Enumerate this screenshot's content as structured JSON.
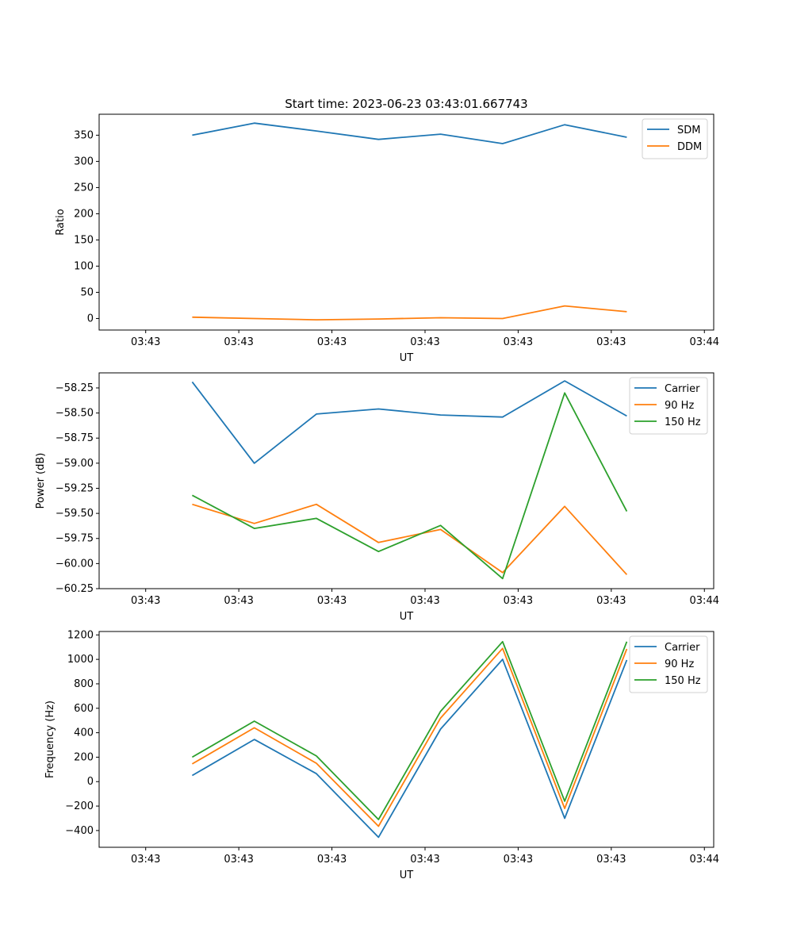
{
  "figure_title": "Start time: 2023-06-23 03:43:01.667743",
  "colors": {
    "blue": "#1f77b4",
    "orange": "#ff7f0e",
    "green": "#2ca02c"
  },
  "chart_data": [
    {
      "type": "line",
      "title": "Start time: 2023-06-23 03:43:01.667743",
      "xlabel": "UT",
      "ylabel": "Ratio",
      "x_tick_labels": [
        "03:43",
        "03:43",
        "03:43",
        "03:43",
        "03:43",
        "03:43",
        "03:44"
      ],
      "y_ticks": [
        0,
        50,
        100,
        150,
        200,
        250,
        300,
        350
      ],
      "y_tick_labels": [
        "0",
        "50",
        "100",
        "150",
        "200",
        "250",
        "300",
        "350"
      ],
      "ylim": [
        -22,
        390
      ],
      "legend_position": "top-right",
      "series": [
        {
          "name": "SDM",
          "color": "#1f77b4",
          "values": [
            350,
            373,
            358,
            342,
            352,
            334,
            370,
            346
          ]
        },
        {
          "name": "DDM",
          "color": "#ff7f0e",
          "values": [
            2.5,
            0,
            -2.5,
            -1,
            1.5,
            0,
            24,
            13
          ]
        }
      ]
    },
    {
      "type": "line",
      "xlabel": "UT",
      "ylabel": "Power (dB)",
      "x_tick_labels": [
        "03:43",
        "03:43",
        "03:43",
        "03:43",
        "03:43",
        "03:43",
        "03:44"
      ],
      "y_ticks": [
        -60.25,
        -60.0,
        -59.75,
        -59.5,
        -59.25,
        -59.0,
        -58.75,
        -58.5,
        -58.25
      ],
      "y_tick_labels": [
        "−60.25",
        "−60.00",
        "−59.75",
        "−59.50",
        "−59.25",
        "−59.00",
        "−58.75",
        "−58.50",
        "−58.25"
      ],
      "ylim": [
        -60.25,
        -58.1
      ],
      "legend_position": "top-right",
      "series": [
        {
          "name": "Carrier",
          "color": "#1f77b4",
          "values": [
            -58.19,
            -59.0,
            -58.51,
            -58.46,
            -58.52,
            -58.54,
            -58.18,
            -58.53
          ]
        },
        {
          "name": "90 Hz",
          "color": "#ff7f0e",
          "values": [
            -59.41,
            -59.6,
            -59.41,
            -59.79,
            -59.66,
            -60.09,
            -59.43,
            -60.11
          ]
        },
        {
          "name": "150 Hz",
          "color": "#2ca02c",
          "values": [
            -59.32,
            -59.65,
            -59.55,
            -59.88,
            -59.62,
            -60.15,
            -58.3,
            -59.48
          ]
        }
      ]
    },
    {
      "type": "line",
      "xlabel": "UT",
      "ylabel": "Frequency (Hz)",
      "x_tick_labels": [
        "03:43",
        "03:43",
        "03:43",
        "03:43",
        "03:43",
        "03:43",
        "03:44"
      ],
      "y_ticks": [
        -400,
        -200,
        0,
        200,
        400,
        600,
        800,
        1000,
        1200
      ],
      "y_tick_labels": [
        "−400",
        "−200",
        "0",
        "200",
        "400",
        "600",
        "800",
        "1000",
        "1200"
      ],
      "ylim": [
        -537,
        1228
      ],
      "legend_position": "top-right",
      "series": [
        {
          "name": "Carrier",
          "color": "#1f77b4",
          "values": [
            50,
            345,
            65,
            -455,
            430,
            1000,
            -300,
            995
          ]
        },
        {
          "name": "90 Hz",
          "color": "#ff7f0e",
          "values": [
            145,
            440,
            150,
            -365,
            520,
            1090,
            -220,
            1085
          ]
        },
        {
          "name": "150 Hz",
          "color": "#2ca02c",
          "values": [
            200,
            495,
            210,
            -310,
            575,
            1145,
            -160,
            1145
          ]
        }
      ]
    }
  ]
}
